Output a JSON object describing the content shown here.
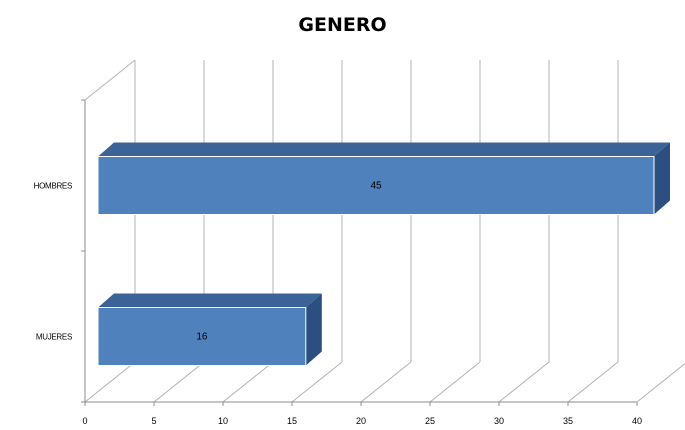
{
  "chart_data": {
    "type": "bar",
    "orientation": "horizontal",
    "style": "3d-clustered",
    "title": "GENERO",
    "xlabel": "",
    "ylabel": "",
    "categories": [
      "MUJERES",
      "HOMBRES"
    ],
    "series": [
      {
        "values": [
          16,
          45
        ],
        "data_labels": [
          "16",
          "45"
        ]
      }
    ],
    "xlim": [
      0,
      40
    ],
    "x_ticks": [
      "0",
      "5",
      "10",
      "15",
      "20",
      "25",
      "30",
      "35",
      "40"
    ],
    "grid": true,
    "legend": "none",
    "colors": {
      "bar_front": "#4f81bd",
      "bar_top": "#3c6398",
      "bar_side": "#2b4f80",
      "gridline": "#b3b3b3"
    }
  }
}
